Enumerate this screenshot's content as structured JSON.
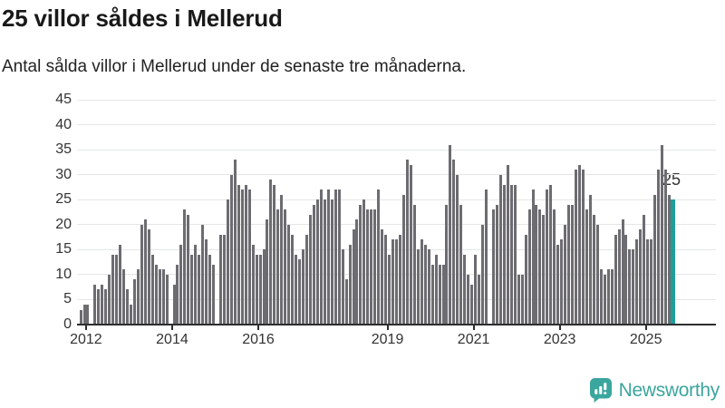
{
  "header": {
    "title": "25 villor såldes i Mellerud",
    "subtitle": "Antal sålda villor i Mellerud under de senaste tre månaderna."
  },
  "chart_data": {
    "type": "bar",
    "title": "25 villor såldes i Mellerud",
    "subtitle": "Antal sålda villor i Mellerud under de senaste tre månaderna.",
    "xlabel": "",
    "ylabel": "",
    "ylim": [
      0,
      45
    ],
    "grid": true,
    "start_month": "2011-11",
    "values": [
      3,
      4,
      4,
      0,
      8,
      7,
      8,
      7,
      10,
      14,
      14,
      16,
      11,
      7,
      4,
      9,
      11,
      20,
      21,
      19,
      14,
      12,
      11,
      11,
      10,
      0,
      8,
      12,
      16,
      23,
      22,
      14,
      16,
      14,
      20,
      17,
      14,
      12,
      0,
      18,
      18,
      25,
      30,
      33,
      28,
      27,
      28,
      27,
      16,
      14,
      14,
      15,
      21,
      29,
      28,
      23,
      26,
      23,
      20,
      18,
      14,
      13,
      15,
      18,
      22,
      24,
      25,
      27,
      25,
      27,
      25,
      27,
      27,
      15,
      9,
      16,
      19,
      21,
      24,
      25,
      23,
      23,
      23,
      27,
      19,
      18,
      14,
      17,
      17,
      18,
      26,
      33,
      32,
      24,
      15,
      17,
      16,
      15,
      12,
      14,
      12,
      12,
      24,
      36,
      33,
      30,
      24,
      14,
      10,
      8,
      14,
      10,
      20,
      27,
      0,
      23,
      24,
      30,
      28,
      32,
      28,
      28,
      10,
      10,
      18,
      23,
      27,
      24,
      23,
      22,
      27,
      28,
      23,
      16,
      17,
      20,
      24,
      24,
      31,
      32,
      31,
      23,
      26,
      22,
      20,
      11,
      10,
      11,
      11,
      18,
      19,
      21,
      18,
      15,
      15,
      17,
      19,
      22,
      17,
      17,
      26,
      31,
      36,
      31,
      26,
      25
    ],
    "y_ticks": [
      0,
      5,
      10,
      15,
      20,
      25,
      30,
      35,
      40,
      45
    ],
    "x_ticks": [
      {
        "label": "2012",
        "index": 2
      },
      {
        "label": "2014",
        "index": 26
      },
      {
        "label": "2016",
        "index": 50
      },
      {
        "label": "2019",
        "index": 86
      },
      {
        "label": "2021",
        "index": 110
      },
      {
        "label": "2023",
        "index": 134
      },
      {
        "label": "2025",
        "index": 158
      }
    ],
    "highlight": {
      "index": 165,
      "value": 25,
      "label": "25"
    },
    "colors": {
      "bar": "#6d6c71",
      "highlight_bar": "#1f9e99",
      "gridline": "#e4e7e6",
      "axis": "#2e2e2e",
      "tick_text": "#333333"
    },
    "legend": null
  },
  "footer": {
    "brand": "Newsworthy",
    "brand_color": "#3ba69d"
  }
}
